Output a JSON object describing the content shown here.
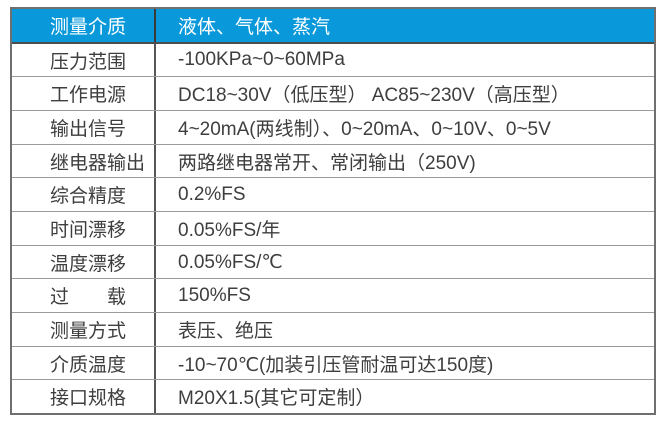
{
  "table": {
    "title": "pressure-transmitter-specifications",
    "header": {
      "label": "测量介质",
      "value": "液体、气体、蒸汽"
    },
    "rows": [
      {
        "label": "压力范围",
        "value": "-100KPa~0~60MPa"
      },
      {
        "label": "工作电源",
        "value": "DC18~30V（低压型） AC85~230V（高压型）"
      },
      {
        "label": "输出信号",
        "value": "4~20mA(两线制）、0~20mA、0~10V、0~5V"
      },
      {
        "label": "继电器输出",
        "value": "两路继电器常开、常闭输出（250V)"
      },
      {
        "label": "综合精度",
        "value": "0.2%FS"
      },
      {
        "label": "时间漂移",
        "value": "0.05%FS/年"
      },
      {
        "label": "温度漂移",
        "value": "0.05%FS/℃"
      },
      {
        "label": "过　　载",
        "value": "150%FS"
      },
      {
        "label": "测量方式",
        "value": "表压、绝压"
      },
      {
        "label": "介质温度",
        "value": "-10~70℃(加装引压管耐温可达150度)"
      },
      {
        "label": "接口规格",
        "value": "M20X1.5(其它可定制）"
      }
    ],
    "colors": {
      "header_bg": "#0999db",
      "header_text": "#ffffff",
      "body_text": "#3e3e3e",
      "border_outer": "#6f6f6f",
      "border_row": "#9b9b9b",
      "border_divider": "#565656"
    }
  }
}
